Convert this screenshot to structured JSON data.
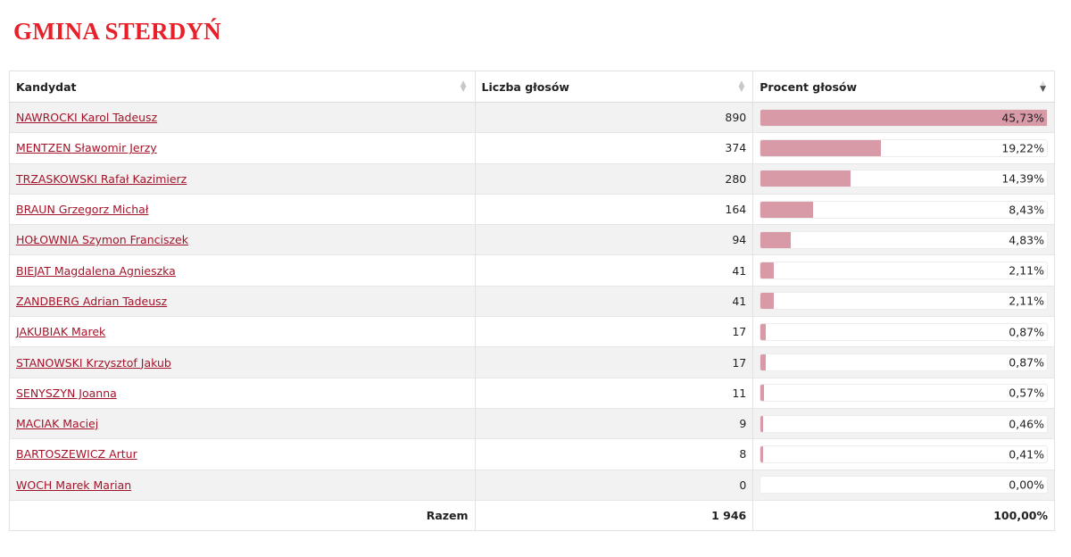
{
  "title": "GMINA STERDYŃ",
  "table": {
    "headers": {
      "candidate": "Kandydat",
      "votes": "Liczba głosów",
      "percent": "Procent głosów"
    },
    "rows": [
      {
        "name": "NAWROCKI Karol Tadeusz",
        "votes": "890",
        "percent": "45,73%",
        "share": 45.73
      },
      {
        "name": "MENTZEN Sławomir Jerzy",
        "votes": "374",
        "percent": "19,22%",
        "share": 19.22
      },
      {
        "name": "TRZASKOWSKI Rafał Kazimierz",
        "votes": "280",
        "percent": "14,39%",
        "share": 14.39
      },
      {
        "name": "BRAUN Grzegorz Michał",
        "votes": "164",
        "percent": "8,43%",
        "share": 8.43
      },
      {
        "name": "HOŁOWNIA Szymon Franciszek",
        "votes": "94",
        "percent": "4,83%",
        "share": 4.83
      },
      {
        "name": "BIEJAT Magdalena Agnieszka",
        "votes": "41",
        "percent": "2,11%",
        "share": 2.11
      },
      {
        "name": "ZANDBERG Adrian Tadeusz",
        "votes": "41",
        "percent": "2,11%",
        "share": 2.11
      },
      {
        "name": "JAKUBIAK Marek",
        "votes": "17",
        "percent": "0,87%",
        "share": 0.87
      },
      {
        "name": "STANOWSKI Krzysztof Jakub",
        "votes": "17",
        "percent": "0,87%",
        "share": 0.87
      },
      {
        "name": "SENYSZYN Joanna",
        "votes": "11",
        "percent": "0,57%",
        "share": 0.57
      },
      {
        "name": "MACIAK Maciej",
        "votes": "9",
        "percent": "0,46%",
        "share": 0.46
      },
      {
        "name": "BARTOSZEWICZ Artur",
        "votes": "8",
        "percent": "0,41%",
        "share": 0.41
      },
      {
        "name": "WOCH Marek Marian",
        "votes": "0",
        "percent": "0,00%",
        "share": 0
      }
    ],
    "total": {
      "label": "Razem",
      "votes": "1 946",
      "percent": "100,00%"
    }
  },
  "colors": {
    "title": "#e8202a",
    "link": "#a3142a",
    "bar": "#d99aa8",
    "row_stripe": "#f2f2f2"
  },
  "icons": {
    "sort": "sort-both-icon",
    "sort_desc": "sort-desc-icon"
  }
}
